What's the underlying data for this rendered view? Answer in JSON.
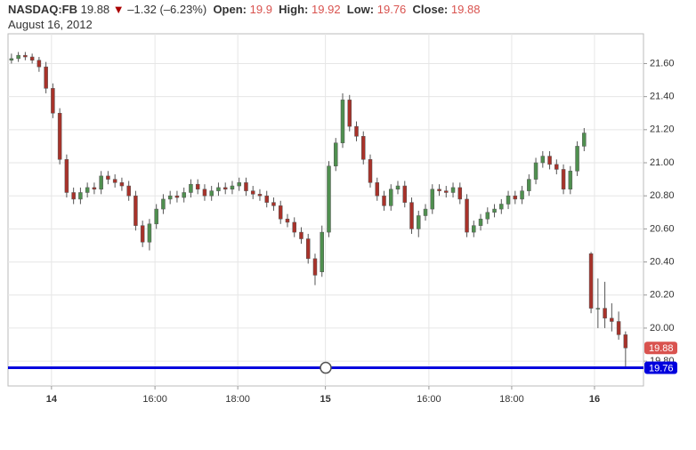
{
  "header": {
    "symbol": "NASDAQ:FB",
    "last": "19.88",
    "change": "–1.32 (–6.23%)",
    "open_label": "Open:",
    "open": "19.9",
    "high_label": "High:",
    "high": "19.92",
    "low_label": "Low:",
    "low": "19.76",
    "close_label": "Close:",
    "close": "19.88",
    "date": "August 16, 2012"
  },
  "chart_data": {
    "type": "candlestick",
    "up_color": "#4f8f4f",
    "down_color": "#a8322a",
    "grid": true,
    "xlim": [
      -0.5,
      91.6
    ],
    "ylim": [
      19.65,
      21.78
    ],
    "xticks": [
      {
        "value": 5.8,
        "label": "14"
      },
      {
        "value": 20.8,
        "label": "16:00"
      },
      {
        "value": 32.8,
        "label": "18:00"
      },
      {
        "value": 45.5,
        "label": "15"
      },
      {
        "value": 60.5,
        "label": "16:00"
      },
      {
        "value": 72.5,
        "label": "18:00"
      },
      {
        "value": 84.5,
        "label": "16"
      }
    ],
    "yticks": [
      {
        "value": 19.8,
        "label": "19.80"
      },
      {
        "value": 20.0,
        "label": "20.00"
      },
      {
        "value": 20.2,
        "label": "20.20"
      },
      {
        "value": 20.4,
        "label": "20.40"
      },
      {
        "value": 20.6,
        "label": "20.60"
      },
      {
        "value": 20.8,
        "label": "20.80"
      },
      {
        "value": 21.0,
        "label": "21.00"
      },
      {
        "value": 21.2,
        "label": "21.20"
      },
      {
        "value": 21.4,
        "label": "21.40"
      },
      {
        "value": 21.6,
        "label": "21.60"
      }
    ],
    "price_labels": [
      {
        "value": 19.88,
        "label": "19.88",
        "color": "#d9534f"
      },
      {
        "value": 19.76,
        "label": "19.76",
        "color": "#0000dd"
      }
    ],
    "x": [
      0,
      1,
      2,
      3,
      4,
      5,
      6,
      7,
      8,
      9,
      10,
      11,
      12,
      13,
      14,
      15,
      16,
      17,
      18,
      19,
      20,
      21,
      22,
      23,
      24,
      25,
      26,
      27,
      28,
      29,
      30,
      31,
      32,
      33,
      34,
      35,
      36,
      37,
      38,
      39,
      40,
      41,
      42,
      43,
      44,
      45,
      46,
      47,
      48,
      49,
      50,
      51,
      52,
      53,
      54,
      55,
      56,
      57,
      58,
      59,
      60,
      61,
      62,
      63,
      64,
      65,
      66,
      67,
      68,
      69,
      70,
      71,
      72,
      73,
      74,
      75,
      76,
      77,
      78,
      79,
      80,
      81,
      82,
      83,
      84,
      85,
      86,
      87,
      88,
      89
    ],
    "open": [
      21.62,
      21.63,
      21.65,
      21.64,
      21.62,
      21.58,
      21.45,
      21.3,
      21.02,
      20.82,
      20.78,
      20.82,
      20.85,
      20.84,
      20.92,
      20.9,
      20.88,
      20.86,
      20.8,
      20.62,
      20.52,
      20.63,
      20.72,
      20.78,
      20.8,
      20.79,
      20.82,
      20.87,
      20.84,
      20.8,
      20.83,
      20.85,
      20.84,
      20.86,
      20.88,
      20.83,
      20.81,
      20.8,
      20.76,
      20.74,
      20.66,
      20.64,
      20.58,
      20.54,
      20.42,
      20.34,
      20.58,
      20.98,
      21.12,
      21.38,
      21.22,
      21.16,
      21.02,
      20.88,
      20.8,
      20.74,
      20.84,
      20.86,
      20.76,
      20.6,
      20.68,
      20.72,
      20.84,
      20.83,
      20.82,
      20.85,
      20.78,
      20.58,
      20.62,
      20.66,
      20.7,
      20.72,
      20.75,
      20.8,
      20.78,
      20.83,
      20.9,
      21.0,
      21.04,
      20.99,
      20.96,
      20.84,
      20.95,
      21.1,
      20.45,
      20.12,
      20.12,
      20.06,
      20.04,
      19.96
    ],
    "high": [
      21.66,
      21.67,
      21.67,
      21.66,
      21.64,
      21.61,
      21.48,
      21.33,
      21.05,
      20.85,
      20.85,
      20.88,
      20.88,
      20.95,
      20.95,
      20.93,
      20.91,
      20.89,
      20.83,
      20.65,
      20.66,
      20.75,
      20.81,
      20.83,
      20.83,
      20.85,
      20.9,
      20.9,
      20.87,
      20.86,
      20.88,
      20.88,
      20.89,
      20.91,
      20.91,
      20.86,
      20.84,
      20.83,
      20.79,
      20.77,
      20.69,
      20.67,
      20.61,
      20.57,
      20.45,
      20.62,
      21.01,
      21.15,
      21.42,
      21.41,
      21.25,
      21.19,
      21.05,
      20.91,
      20.83,
      20.87,
      20.89,
      20.89,
      20.79,
      20.71,
      20.75,
      20.87,
      20.87,
      20.86,
      20.88,
      20.88,
      20.81,
      20.65,
      20.69,
      20.73,
      20.75,
      20.78,
      20.83,
      20.83,
      20.86,
      20.93,
      21.03,
      21.07,
      21.07,
      21.02,
      20.99,
      20.98,
      21.13,
      21.21,
      20.46,
      20.3,
      20.28,
      20.15,
      20.1,
      19.98
    ],
    "low": [
      21.6,
      21.61,
      21.62,
      21.6,
      21.55,
      21.42,
      21.27,
      20.99,
      20.79,
      20.75,
      20.75,
      20.79,
      20.81,
      20.81,
      20.87,
      20.85,
      20.83,
      20.77,
      20.59,
      20.49,
      20.47,
      20.6,
      20.69,
      20.75,
      20.76,
      20.76,
      20.79,
      20.81,
      20.77,
      20.77,
      20.8,
      20.81,
      20.81,
      20.83,
      20.8,
      20.78,
      20.77,
      20.73,
      20.71,
      20.63,
      20.61,
      20.55,
      20.51,
      20.39,
      20.26,
      20.31,
      20.55,
      20.95,
      21.09,
      21.19,
      21.13,
      20.99,
      20.85,
      20.77,
      20.71,
      20.71,
      20.81,
      20.73,
      20.57,
      20.55,
      20.65,
      20.69,
      20.8,
      20.79,
      20.79,
      20.75,
      20.55,
      20.55,
      20.59,
      20.63,
      20.67,
      20.69,
      20.72,
      20.75,
      20.75,
      20.8,
      20.87,
      20.97,
      20.96,
      20.93,
      20.81,
      20.81,
      20.92,
      21.07,
      20.09,
      20.0,
      20.0,
      19.98,
      19.93,
      19.76
    ],
    "close": [
      21.63,
      21.65,
      21.64,
      21.62,
      21.58,
      21.45,
      21.3,
      21.02,
      20.82,
      20.78,
      20.82,
      20.85,
      20.84,
      20.92,
      20.9,
      20.88,
      20.86,
      20.8,
      20.62,
      20.52,
      20.63,
      20.72,
      20.78,
      20.8,
      20.79,
      20.82,
      20.87,
      20.84,
      20.8,
      20.83,
      20.85,
      20.84,
      20.86,
      20.88,
      20.83,
      20.81,
      20.8,
      20.76,
      20.74,
      20.66,
      20.64,
      20.58,
      20.54,
      20.42,
      20.32,
      20.58,
      20.98,
      21.12,
      21.38,
      21.22,
      21.16,
      21.02,
      20.88,
      20.8,
      20.74,
      20.84,
      20.86,
      20.76,
      20.6,
      20.68,
      20.72,
      20.84,
      20.83,
      20.82,
      20.85,
      20.78,
      20.58,
      20.62,
      20.66,
      20.7,
      20.72,
      20.75,
      20.8,
      20.78,
      20.83,
      20.9,
      21.0,
      21.04,
      20.99,
      20.96,
      20.84,
      20.95,
      21.1,
      21.18,
      20.12,
      20.12,
      20.06,
      20.04,
      19.96,
      19.88
    ]
  }
}
